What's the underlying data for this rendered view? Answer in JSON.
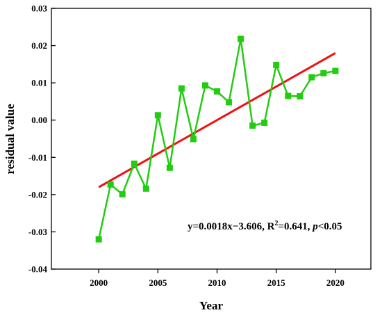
{
  "chart_data": {
    "type": "line",
    "title": "",
    "xlabel": "Year",
    "ylabel": "residual value",
    "xlim": [
      1996,
      2023
    ],
    "ylim": [
      -0.04,
      0.03
    ],
    "xticks": [
      2000,
      2005,
      2010,
      2015,
      2020
    ],
    "xtick_labels": [
      "2000",
      "2005",
      "2010",
      "2015",
      "2020"
    ],
    "yticks": [
      -0.04,
      -0.03,
      -0.02,
      -0.01,
      0.0,
      0.01,
      0.02,
      0.03
    ],
    "ytick_labels": [
      "-0.04",
      "-0.03",
      "-0.02",
      "-0.01",
      "0.00",
      "0.01",
      "0.02",
      "0.03"
    ],
    "grid": false,
    "series": [
      {
        "color": "#22cc11",
        "marker": "square",
        "x": [
          2000,
          2001,
          2002,
          2003,
          2004,
          2005,
          2006,
          2007,
          2008,
          2009,
          2010,
          2011,
          2012,
          2013,
          2014,
          2015,
          2016,
          2017,
          2018,
          2019,
          2020
        ],
        "y": [
          -0.032,
          -0.0173,
          -0.0199,
          -0.0117,
          -0.0184,
          0.0013,
          -0.0128,
          0.0085,
          -0.0051,
          0.0093,
          0.0077,
          0.0048,
          0.0218,
          -0.0015,
          -0.0007,
          0.0148,
          0.0065,
          0.0064,
          0.0115,
          0.0126,
          0.0132
        ]
      }
    ],
    "trendline": {
      "color": "#ee1111",
      "x": [
        2000,
        2020
      ],
      "y": [
        -0.018,
        0.018
      ]
    },
    "annotation": {
      "prefix": "y=0.0018x−3.606, R",
      "superscript": "2",
      "middle": "=0.641, ",
      "italic": "p",
      "suffix": "<0.05"
    }
  }
}
